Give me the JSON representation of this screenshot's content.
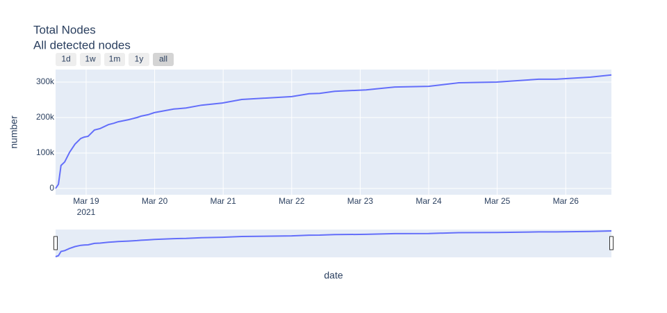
{
  "chart_data": {
    "type": "line",
    "title": "Total Nodes",
    "subtitle": "All detected nodes",
    "x_label": "date",
    "y_label": "number",
    "range_buttons": [
      "1d",
      "1w",
      "1m",
      "1y",
      "all"
    ],
    "active_button": "all",
    "x": [
      "2021-03-18 13:18",
      "2021-03-18 14:18",
      "2021-03-18 15:12",
      "2021-03-18 16:30",
      "2021-03-18 18:12",
      "2021-03-18 20:06",
      "2021-03-18 22:06",
      "2021-03-18 23:18",
      "2021-03-19 00:42",
      "2021-03-19 02:54",
      "2021-03-19 04:54",
      "2021-03-19 07:48",
      "2021-03-19 09:42",
      "2021-03-19 11:12",
      "2021-03-19 14:48",
      "2021-03-19 17:48",
      "2021-03-19 19:12",
      "2021-03-19 21:42",
      "2021-03-19 23:54",
      "2021-03-20 06:42",
      "2021-03-20 11:00",
      "2021-03-20 16:24",
      "2021-03-20 23:42",
      "2021-03-21 06:30",
      "2021-03-22 00:00",
      "2021-03-22 06:06",
      "2021-03-22 09:48",
      "2021-03-22 15:06",
      "2021-03-23 02:06",
      "2021-03-23 12:06",
      "2021-03-24 00:00",
      "2021-03-24 10:30",
      "2021-03-24 23:48",
      "2021-03-25 14:30",
      "2021-03-25 20:36",
      "2021-03-26 08:42",
      "2021-03-26 16:00"
    ],
    "series": [
      {
        "name": "number",
        "color": "#636efa",
        "values": [
          0,
          12000,
          65000,
          75000,
          102000,
          125000,
          141000,
          145000,
          147000,
          165000,
          169000,
          180000,
          184000,
          188000,
          194000,
          200000,
          204000,
          208000,
          214000,
          224000,
          227000,
          235000,
          241000,
          251000,
          259000,
          267000,
          268000,
          274000,
          278000,
          286000,
          288000,
          298000,
          300000,
          308000,
          308000,
          314000,
          320000
        ]
      }
    ],
    "xlim": [
      "2021-03-18 13:18",
      "2021-03-26 16:00"
    ],
    "xticks": [
      {
        "value": "2021-03-19",
        "label": "Mar 19"
      },
      {
        "value": "2021-03-20",
        "label": "Mar 20"
      },
      {
        "value": "2021-03-21",
        "label": "Mar 21"
      },
      {
        "value": "2021-03-22",
        "label": "Mar 22"
      },
      {
        "value": "2021-03-23",
        "label": "Mar 23"
      },
      {
        "value": "2021-03-24",
        "label": "Mar 24"
      },
      {
        "value": "2021-03-25",
        "label": "Mar 25"
      },
      {
        "value": "2021-03-26",
        "label": "Mar 26"
      }
    ],
    "x_year_label": "2021",
    "ylim": [
      -17600,
      335300
    ],
    "yticks": [
      0,
      {
        "value": 100000,
        "label": "100k"
      },
      {
        "value": 200000,
        "label": "200k"
      },
      {
        "value": 300000,
        "label": "300k"
      }
    ],
    "grid": true,
    "range_slider": true
  }
}
